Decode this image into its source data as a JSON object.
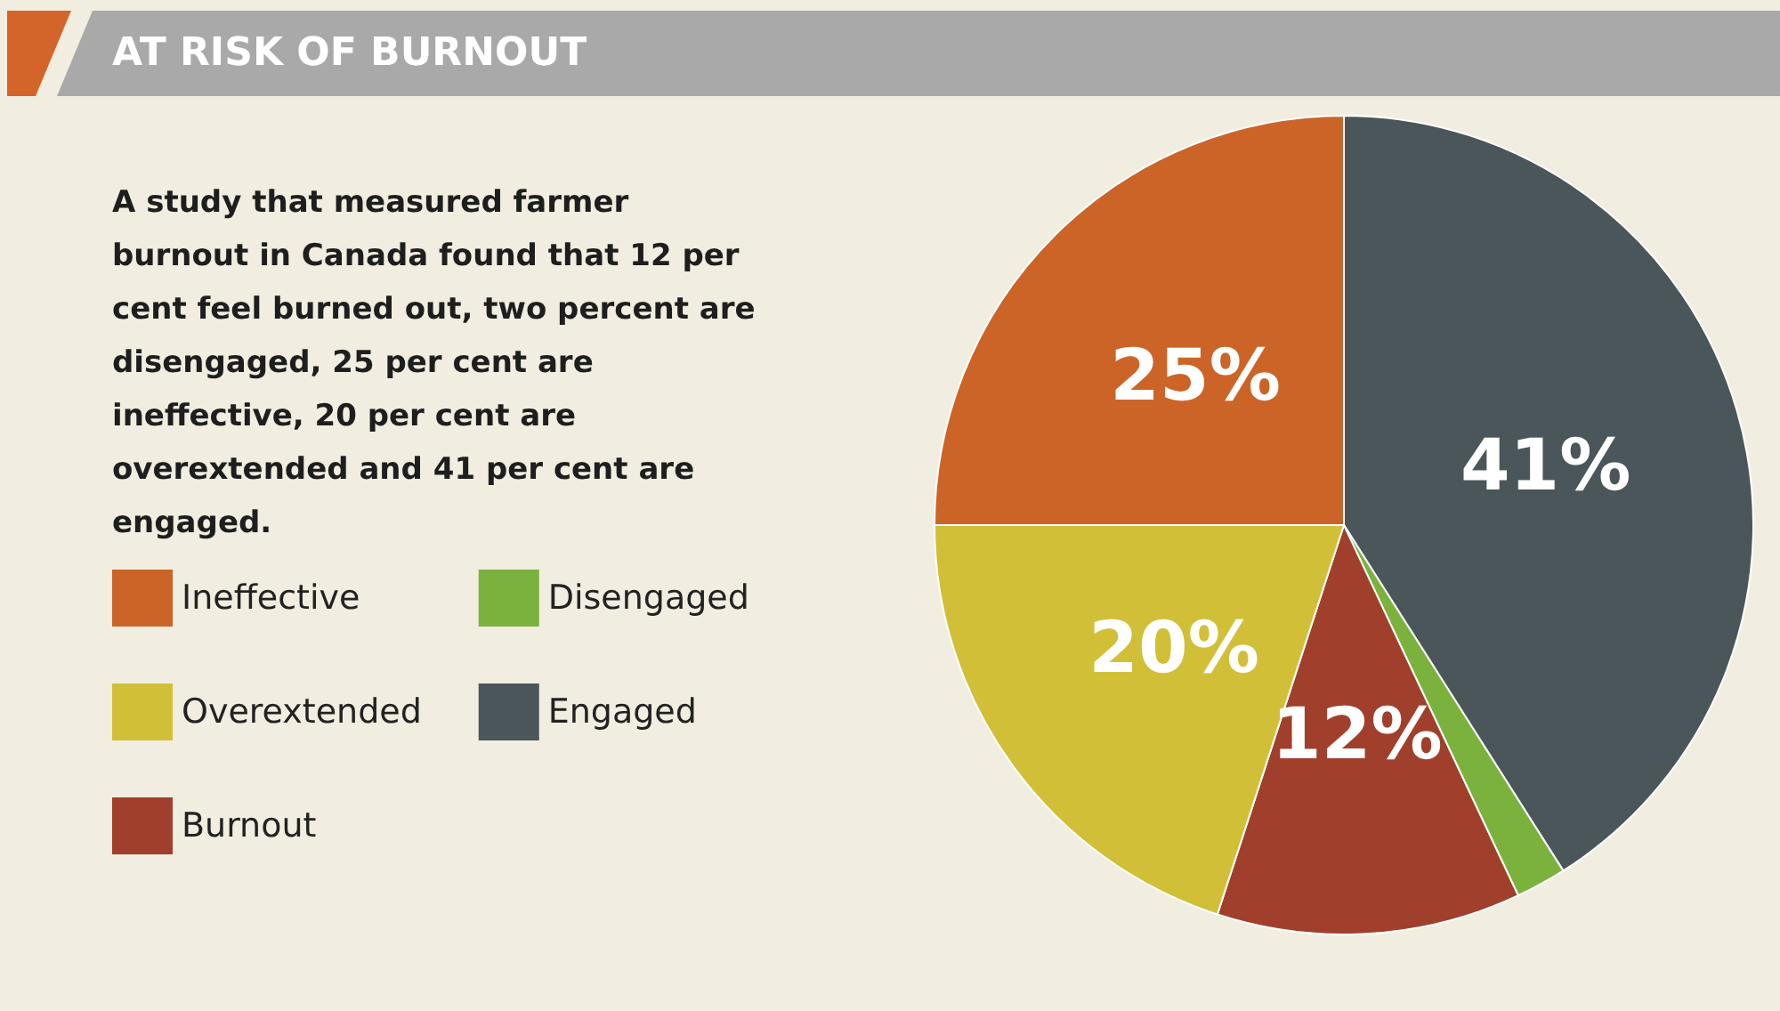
{
  "chart_data": {
    "type": "pie",
    "title": "AT RISK OF BURNOUT",
    "subtitle": "A study that measured farmer burnout in Canada found that 12 per cent feel burned out, two percent are disengaged, 25 per cent are ineffective, 20 per cent are overextended and 41 per cent are engaged.",
    "categories": [
      "Engaged",
      "Disengaged",
      "Burnout",
      "Overextended",
      "Ineffective"
    ],
    "values": [
      41,
      2,
      12,
      20,
      25
    ],
    "colors": [
      "#4a565a",
      "#7bb23e",
      "#a0402c",
      "#d2bf38",
      "#cc6428"
    ],
    "value_labels": [
      "41%",
      null,
      "12%",
      "20%",
      "25%"
    ],
    "legend": "left"
  }
}
